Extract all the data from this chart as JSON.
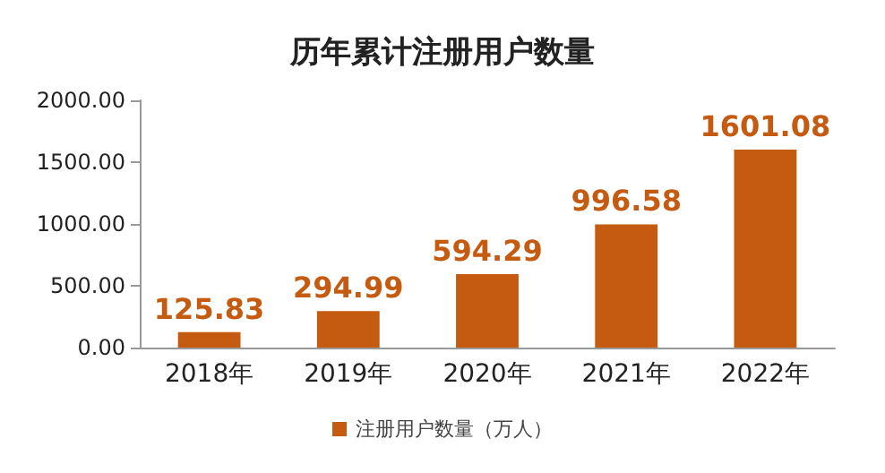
{
  "chart_data": {
    "type": "bar",
    "title": "历年累计注册用户数量",
    "categories": [
      "2018年",
      "2019年",
      "2020年",
      "2021年",
      "2022年"
    ],
    "series": [
      {
        "name": "注册用户数量（万人）",
        "color": "#c55a11",
        "values": [
          125.83,
          294.99,
          594.29,
          996.58,
          1601.08
        ]
      }
    ],
    "ylim": [
      0,
      2000
    ],
    "yticks": [
      {
        "value": 0,
        "label": "0.00"
      },
      {
        "value": 500,
        "label": "500.00"
      },
      {
        "value": 1000,
        "label": "1000.00"
      },
      {
        "value": 1500,
        "label": "1500.00"
      },
      {
        "value": 2000,
        "label": "2000.00"
      }
    ],
    "data_labels": true,
    "grid": false,
    "legend": "bottom"
  }
}
